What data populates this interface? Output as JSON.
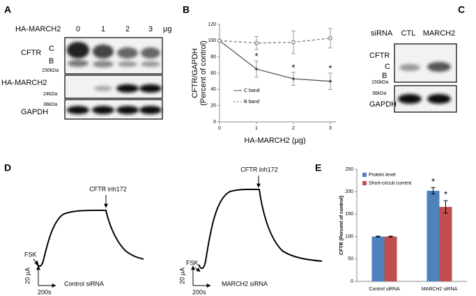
{
  "panel_letters": [
    "A",
    "B",
    "C",
    "D",
    "E"
  ],
  "panel_a": {
    "row_label": "HA-MARCH2",
    "lanes": [
      "0",
      "1",
      "2",
      "3"
    ],
    "unit": "μg",
    "blots": [
      "CFTR",
      "HA-MARCH2",
      "GAPDH"
    ],
    "bands": [
      "C",
      "B"
    ],
    "markers": [
      "150kDa",
      "24kDa",
      "38kDa"
    ]
  },
  "panel_c": {
    "row_label": "siRNA",
    "lanes": [
      "CTL",
      "MARCH2"
    ],
    "blots": [
      "CFTR",
      "GAPDH"
    ],
    "bands": [
      "C",
      "B"
    ],
    "markers": [
      "150kDa",
      "38kDa"
    ]
  },
  "panel_d": {
    "inhibitor": "CFTR inh172",
    "stimulus": "FSK",
    "scale_current": "20 µA",
    "scale_time": "200s",
    "conditions": [
      "Control siRNA",
      "MARCH2 siRNA"
    ]
  },
  "chart_data": [
    {
      "type": "line",
      "x_label": "HA-MARCH2 (µg)",
      "y_label": [
        "CFTR/GAPDH",
        "(Percent of control)"
      ],
      "x": [
        0,
        1,
        2,
        3
      ],
      "xlim": [
        0,
        3
      ],
      "xticks": [
        0,
        1,
        2,
        3
      ],
      "ylim": [
        0,
        120
      ],
      "yticks": [
        0,
        20,
        40,
        60,
        80,
        100,
        120
      ],
      "series": [
        {
          "name": "C band",
          "color": "#555555",
          "dash": false,
          "values": [
            100,
            65,
            53,
            50
          ],
          "errors": [
            null,
            10,
            8,
            10
          ],
          "significance": [
            null,
            "*",
            "*",
            "*"
          ]
        },
        {
          "name": "B band",
          "color": "#777777",
          "dash": true,
          "values": [
            100,
            97,
            98,
            103
          ],
          "errors": [
            null,
            8,
            14,
            12
          ],
          "significance": [
            null,
            null,
            null,
            null
          ]
        }
      ]
    },
    {
      "type": "bar",
      "y_label": "CFTR (Percent of control)",
      "categories": [
        "Control siRNA",
        "MARCH2 siRNA"
      ],
      "ylim": [
        0,
        250
      ],
      "yticks": [
        0,
        50,
        100,
        150,
        200,
        250
      ],
      "legend": "top-left",
      "series": [
        {
          "name": "Protein level",
          "color": "#4f81bd",
          "values": [
            100,
            202
          ],
          "errors": [
            1,
            7
          ],
          "significance": [
            null,
            "*"
          ]
        },
        {
          "name": "Short-circuit current",
          "color": "#c0504d",
          "values": [
            100,
            166
          ],
          "errors": [
            1,
            14
          ],
          "significance": [
            null,
            "*"
          ]
        }
      ]
    }
  ]
}
